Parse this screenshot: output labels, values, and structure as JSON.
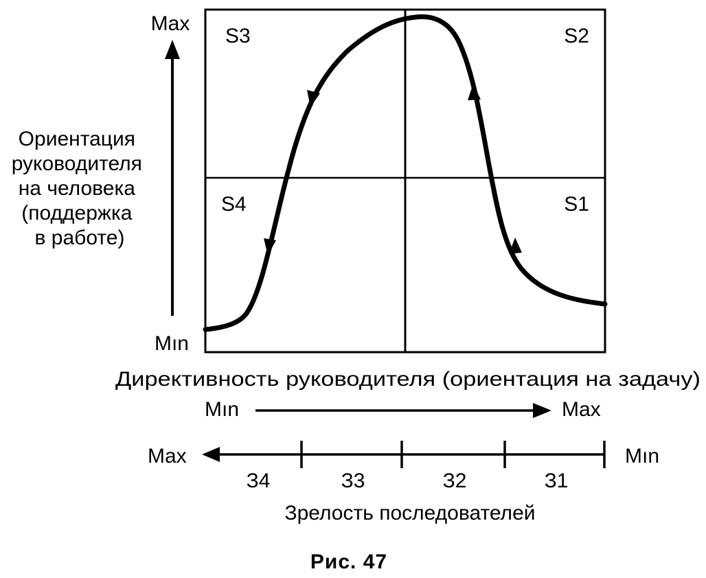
{
  "quadrants": {
    "s1": "S1",
    "s2": "S2",
    "s3": "S3",
    "s4": "S4"
  },
  "y_axis": {
    "max_label": "Max",
    "min_label": "Mın",
    "title_lines": [
      "Ориентация",
      "руководителя",
      "на человека",
      "(поддержка",
      "в работе)"
    ]
  },
  "x_axis": {
    "title": "Директивность руководителя (ориентация на задачу)",
    "min_label": "Mın",
    "max_label": "Max"
  },
  "maturity_scale": {
    "left_label": "Max",
    "right_label": "Mın",
    "levels": [
      "З4",
      "З3",
      "З2",
      "З1"
    ],
    "title": "Зрелость последователей"
  },
  "caption": "Рис. 47"
}
